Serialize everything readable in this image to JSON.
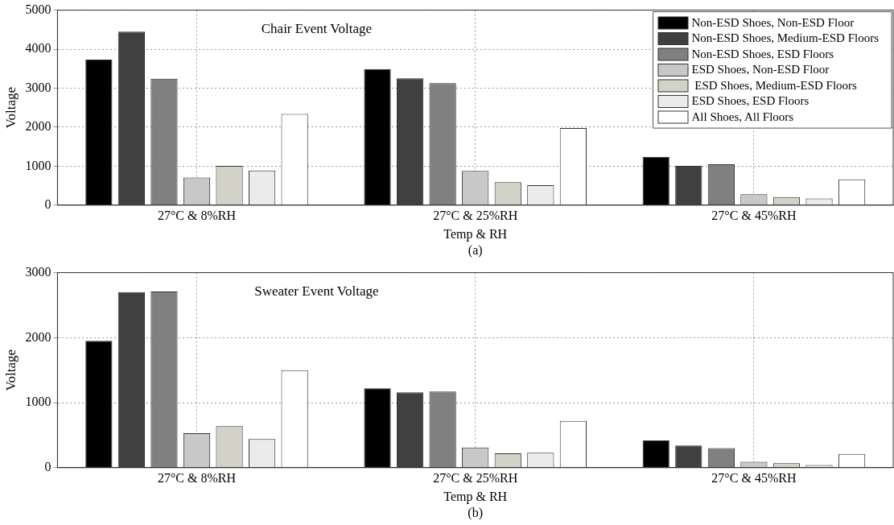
{
  "chart_data": [
    {
      "type": "bar",
      "title": "Chair Event Voltage",
      "xlabel": "Temp & RH",
      "ylabel": "Voltage",
      "annotations": [
        "(a)"
      ],
      "categories": [
        "27°C & 8%RH",
        "27°C & 25%RH",
        "27°C & 45%RH"
      ],
      "series": [
        {
          "name": "Non-ESD Shoes, Non-ESD Floor",
          "color": "#000000",
          "values": [
            3730,
            3490,
            1240
          ]
        },
        {
          "name": "Non-ESD Shoes, Medium-ESD Floors",
          "color": "#404040",
          "values": [
            4450,
            3250,
            1010
          ]
        },
        {
          "name": "Non-ESD Shoes, ESD Floors",
          "color": "#808080",
          "values": [
            3240,
            3130,
            1050
          ]
        },
        {
          "name": "ESD Shoes, Non-ESD Floor",
          "color": "#c8c8c8",
          "values": [
            710,
            880,
            280
          ]
        },
        {
          "name": " ESD Shoes, Medium-ESD Floors",
          "color": "#d2d2c8",
          "values": [
            1010,
            590,
            210
          ]
        },
        {
          "name": "ESD Shoes, ESD Floors",
          "color": "#ebebeb",
          "values": [
            890,
            510,
            170
          ]
        },
        {
          "name": "All Shoes, All Floors",
          "color": "#ffffff",
          "values": [
            2340,
            1980,
            660
          ]
        }
      ],
      "ylim": [
        0,
        5000
      ],
      "yticks": [
        0,
        1000,
        2000,
        3000,
        4000,
        5000
      ],
      "grid": true,
      "legend": "top right"
    },
    {
      "type": "bar",
      "title": "Sweater Event Voltage",
      "xlabel": "Temp & RH",
      "ylabel": "Voltage",
      "annotations": [
        "(b)"
      ],
      "categories": [
        "27°C & 8%RH",
        "27°C & 25%RH",
        "27°C & 45%RH"
      ],
      "series": [
        {
          "color": "#000000",
          "values": [
            1950,
            1220,
            420
          ]
        },
        {
          "color": "#404040",
          "values": [
            2700,
            1160,
            340
          ]
        },
        {
          "color": "#808080",
          "values": [
            2710,
            1170,
            300
          ]
        },
        {
          "color": "#c8c8c8",
          "values": [
            530,
            310,
            90
          ]
        },
        {
          "color": "#d2d2c8",
          "values": [
            640,
            220,
            70
          ]
        },
        {
          "color": "#ebebeb",
          "values": [
            440,
            230,
            40
          ]
        },
        {
          "color": "#ffffff",
          "values": [
            1500,
            720,
            210
          ]
        }
      ],
      "ylim": [
        0,
        3000
      ],
      "yticks": [
        0,
        1000,
        2000,
        3000
      ],
      "grid": true,
      "legend": false
    }
  ]
}
